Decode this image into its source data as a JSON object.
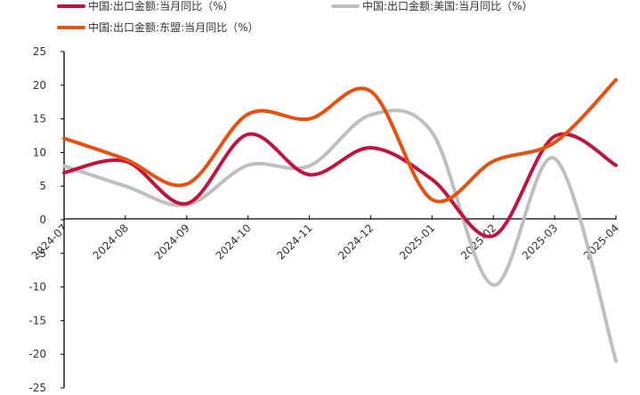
{
  "chart_data": {
    "type": "line",
    "categories": [
      "2024-07",
      "2024-08",
      "2024-09",
      "2024-10",
      "2024-11",
      "2024-12",
      "2025-01",
      "2025-02",
      "2025-03",
      "2025-04"
    ],
    "series": [
      {
        "name": "中国:出口金额:当月同比（%）",
        "color": "#c0143c",
        "values": [
          7.0,
          8.7,
          2.4,
          12.7,
          6.7,
          10.7,
          6.0,
          -2.4,
          12.4,
          8.1
        ]
      },
      {
        "name": "中国:出口金额:美国:当月同比（%）",
        "color": "#bfbfbf",
        "values": [
          8.0,
          5.0,
          2.2,
          8.1,
          8.0,
          15.6,
          13.0,
          -9.7,
          9.1,
          -21.0
        ]
      },
      {
        "name": "中国:出口金额:东盟:当月同比（%）",
        "color": "#e8500f",
        "values": [
          12.1,
          9.0,
          5.3,
          15.7,
          15.0,
          19.1,
          3.0,
          8.7,
          11.5,
          20.8
        ]
      }
    ],
    "ylim": [
      -25,
      25
    ],
    "yticks": [
      -25,
      -20,
      -15,
      -10,
      -5,
      0,
      5,
      10,
      15,
      20,
      25
    ],
    "ytick_labels": [
      "-25",
      "-20",
      "-15",
      "-10",
      "-5",
      "0",
      "5",
      "10",
      "15",
      "20",
      "25"
    ],
    "legend_position": "top",
    "grid": false
  }
}
